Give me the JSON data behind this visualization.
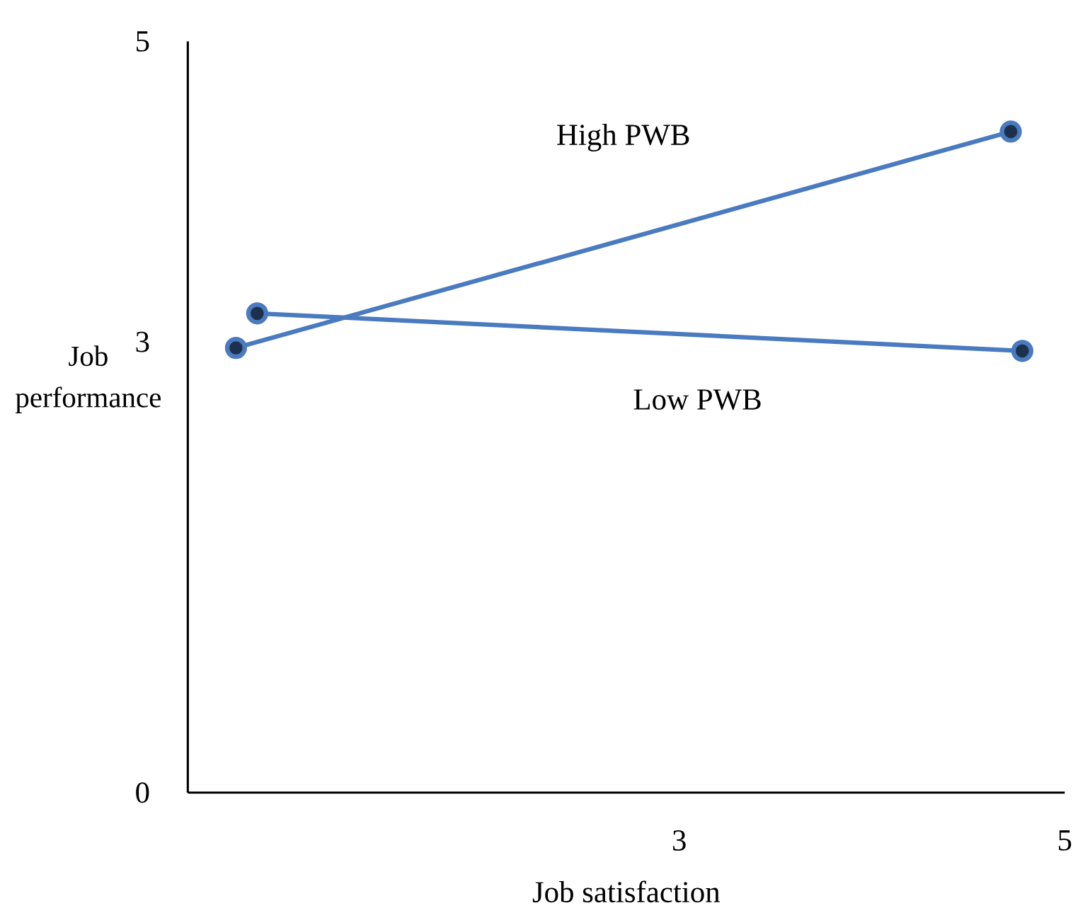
{
  "chart_data": {
    "type": "line",
    "xlabel": "Job satisfaction",
    "ylabel": "Job performance",
    "xlim": [
      0.45,
      5
    ],
    "ylim": [
      0,
      5
    ],
    "xticks": [
      3,
      5
    ],
    "yticks": [
      0,
      3,
      5
    ],
    "marker": "circle",
    "line_style": "solid",
    "grid": false,
    "series": [
      {
        "name": "High PWB",
        "color": "#4a7abf",
        "x": [
          0.7,
          4.72
        ],
        "values": [
          2.96,
          4.4
        ]
      },
      {
        "name": "Low PWB",
        "color": "#4a7abf",
        "x": [
          0.81,
          4.78
        ],
        "values": [
          3.19,
          2.94
        ]
      }
    ]
  }
}
